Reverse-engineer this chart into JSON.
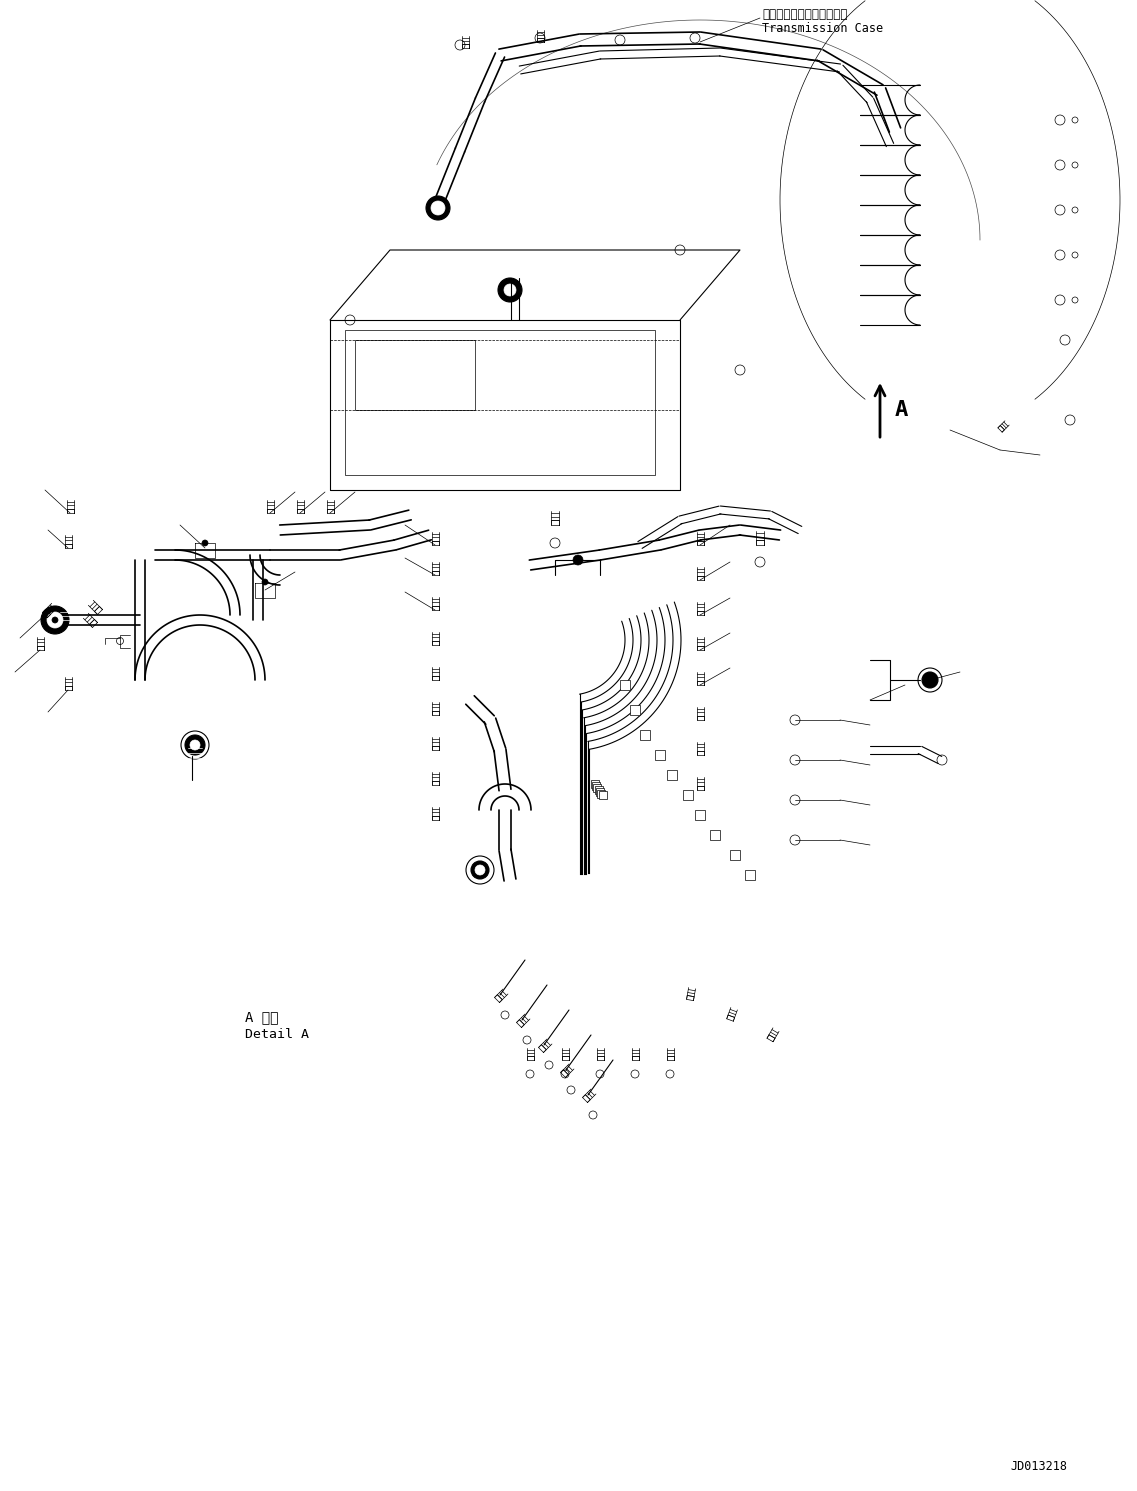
{
  "bg_color": "#ffffff",
  "line_color": "#000000",
  "fig_width": 11.37,
  "fig_height": 14.91,
  "dpi": 100,
  "label_top_jp": "トランスミッションケース",
  "label_top_en": "Transmission Case",
  "label_detail_jp": "A 詳細",
  "label_detail_en": "Detail A",
  "label_A": "A",
  "label_code": "JD013218"
}
